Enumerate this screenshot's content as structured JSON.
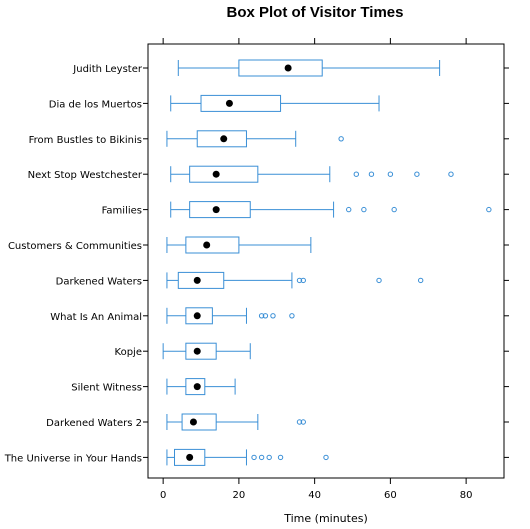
{
  "chart_data": {
    "type": "boxplot",
    "title": "Box Plot of Visitor Times",
    "xlabel": "Time (minutes)",
    "ylabel": "",
    "xlim": [
      -4,
      90
    ],
    "xticks": [
      0,
      20,
      40,
      60,
      80
    ],
    "grid": false,
    "box_color": "#3a8fd6",
    "median_color": "#000000",
    "categories": [
      "Judith Leyster",
      "Dia de los Muertos",
      "From Bustles to Bikinis",
      "Next Stop Westchester",
      "Families",
      "Customers & Communities",
      "Darkened Waters",
      "What Is An Animal",
      "Kopje",
      "Silent Witness",
      "Darkened Waters 2",
      "The Universe in Your Hands"
    ],
    "boxes": [
      {
        "whisker_low": 4,
        "q1": 20,
        "median": 33,
        "q3": 42,
        "whisker_high": 73,
        "outliers": []
      },
      {
        "whisker_low": 2,
        "q1": 10,
        "median": 17.5,
        "q3": 31,
        "whisker_high": 57,
        "outliers": []
      },
      {
        "whisker_low": 1,
        "q1": 9,
        "median": 16,
        "q3": 22,
        "whisker_high": 35,
        "outliers": [
          47
        ]
      },
      {
        "whisker_low": 2,
        "q1": 7,
        "median": 14,
        "q3": 25,
        "whisker_high": 44,
        "outliers": [
          51,
          55,
          60,
          67,
          76
        ]
      },
      {
        "whisker_low": 2,
        "q1": 7,
        "median": 14,
        "q3": 23,
        "whisker_high": 45,
        "outliers": [
          49,
          53,
          61,
          86
        ]
      },
      {
        "whisker_low": 1,
        "q1": 6,
        "median": 11.5,
        "q3": 20,
        "whisker_high": 39,
        "outliers": []
      },
      {
        "whisker_low": 1,
        "q1": 4,
        "median": 9,
        "q3": 16,
        "whisker_high": 34,
        "outliers": [
          36,
          37,
          57,
          68
        ]
      },
      {
        "whisker_low": 1,
        "q1": 6,
        "median": 9,
        "q3": 13,
        "whisker_high": 22,
        "outliers": [
          26,
          27,
          29,
          34
        ]
      },
      {
        "whisker_low": 0,
        "q1": 6,
        "median": 9,
        "q3": 14,
        "whisker_high": 23,
        "outliers": []
      },
      {
        "whisker_low": 1,
        "q1": 6,
        "median": 9,
        "q3": 11,
        "whisker_high": 19,
        "outliers": []
      },
      {
        "whisker_low": 1,
        "q1": 5,
        "median": 8,
        "q3": 14,
        "whisker_high": 25,
        "outliers": [
          36,
          37
        ]
      },
      {
        "whisker_low": 1,
        "q1": 3,
        "median": 7,
        "q3": 11,
        "whisker_high": 22,
        "outliers": [
          24,
          26,
          28,
          31,
          43
        ]
      }
    ]
  }
}
